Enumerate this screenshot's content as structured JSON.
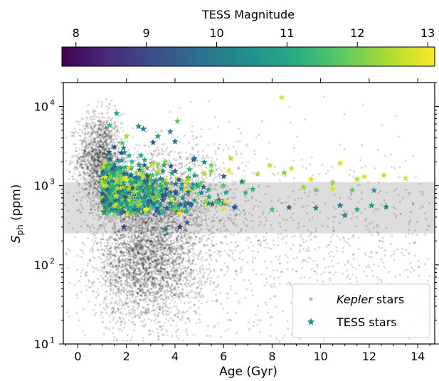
{
  "colorbar": {
    "label": "TESS Magnitude",
    "min": 7.8,
    "max": 13.1,
    "ticks": [
      8,
      9,
      10,
      11,
      12,
      13
    ],
    "tick_labels": [
      "8",
      "9",
      "10",
      "11",
      "12",
      "13"
    ],
    "colormap": "viridis"
  },
  "chart_data": {
    "type": "scatter",
    "xlabel": "Age (Gyr)",
    "ylabel_main": "S",
    "ylabel_sub": "ph",
    "ylabel_rest": " (ppm)",
    "xlim": [
      -0.6,
      14.7
    ],
    "ylim": [
      10,
      20000
    ],
    "yscale": "log",
    "x_ticks": [
      0,
      2,
      4,
      6,
      8,
      10,
      12,
      14
    ],
    "x_tick_labels": [
      "0",
      "2",
      "4",
      "6",
      "8",
      "10",
      "12",
      "14"
    ],
    "y_ticks": [
      {
        "value": 10,
        "base": "10",
        "exp": "1"
      },
      {
        "value": 100,
        "base": "10",
        "exp": "2"
      },
      {
        "value": 1000,
        "base": "10",
        "exp": "3"
      },
      {
        "value": 10000,
        "base": "10",
        "exp": "4"
      }
    ],
    "shaded_band": {
      "y_low": 250,
      "y_high": 1100,
      "color": "#dddddd"
    },
    "legend": {
      "placement": "lower-right",
      "entries": [
        {
          "label": "Kepler",
          "label_suffix": " stars",
          "italic_part": true,
          "marker": "dot",
          "color": "#b5b5b5"
        },
        {
          "label": "TESS stars",
          "label_suffix": "",
          "italic_part": false,
          "marker": "star",
          "color": "#21918c"
        }
      ]
    },
    "series": [
      {
        "name": "Kepler stars",
        "marker": "dot",
        "color": "#000000",
        "opacity": 0.15,
        "distribution": "dense cloud: young stars (0.3-1.5 Gyr) at 1000-8000 ppm; broad cluster 1.5-5 Gyr at 30-500 ppm; sparse spread to 14.5 Gyr at 20-3000 ppm"
      },
      {
        "name": "TESS stars",
        "marker": "star",
        "color_by": "TESS Magnitude",
        "points": [
          [
            8.4,
            13000,
            12.8
          ],
          [
            1.6,
            8200,
            10.9
          ],
          [
            4.1,
            6500,
            11.8
          ],
          [
            2.7,
            5200,
            9.9
          ],
          [
            10.8,
            1900,
            12.8
          ],
          [
            11.8,
            1300,
            12.8
          ],
          [
            12.6,
            1350,
            12.5
          ],
          [
            13.5,
            1250,
            12.8
          ],
          [
            11.5,
            1200,
            12.5
          ],
          [
            10.5,
            1100,
            12.3
          ],
          [
            9.3,
            950,
            12.2
          ],
          [
            9.8,
            880,
            11.9
          ],
          [
            10.5,
            900,
            12.8
          ],
          [
            11.3,
            880,
            11.8
          ],
          [
            12.2,
            870,
            10.7
          ],
          [
            9.6,
            1200,
            12.8
          ],
          [
            8.8,
            1650,
            12.7
          ],
          [
            7.9,
            1800,
            12.6
          ],
          [
            7.4,
            1400,
            12.4
          ],
          [
            8.5,
            1450,
            12.0
          ],
          [
            12.7,
            540,
            10.0
          ],
          [
            12.1,
            560,
            10.6
          ],
          [
            11.5,
            500,
            11.0
          ],
          [
            11.0,
            420,
            10.2
          ],
          [
            9.8,
            520,
            10.1
          ],
          [
            8.7,
            530,
            9.5
          ],
          [
            10.8,
            560,
            10.0
          ],
          [
            8.0,
            500,
            11.5
          ],
          [
            6.5,
            540,
            10.8
          ],
          [
            6.0,
            600,
            10.5
          ],
          [
            5.8,
            650,
            10.2
          ],
          [
            4.2,
            300,
            8.4
          ],
          [
            4.5,
            340,
            9.4
          ],
          [
            1.9,
            300,
            8.8
          ],
          [
            3.6,
            280,
            9.8
          ],
          [
            5.2,
            1400,
            12.6
          ],
          [
            6.3,
            2200,
            12.6
          ],
          [
            5.5,
            1800,
            11.9
          ],
          [
            4.8,
            2200,
            9.8
          ],
          [
            4.0,
            3600,
            9.9
          ],
          [
            3.8,
            4800,
            10.3
          ],
          [
            3.3,
            4200,
            10.9
          ],
          [
            2.5,
            5600,
            10.5
          ],
          [
            3.1,
            3500,
            9.0
          ],
          [
            1.3,
            5800,
            11.4
          ],
          [
            2.0,
            4200,
            12.4
          ],
          [
            1.8,
            2600,
            8.9
          ],
          [
            2.2,
            1700,
            12.0
          ],
          [
            2.8,
            1200,
            12.3
          ],
          [
            3.4,
            1000,
            11.3
          ],
          [
            4.4,
            900,
            12.6
          ],
          [
            5.0,
            800,
            12.1
          ],
          [
            6.0,
            1000,
            11.6
          ],
          [
            6.8,
            1100,
            12.4
          ],
          [
            7.2,
            900,
            11.2
          ],
          [
            1.5,
            800,
            11.8
          ],
          [
            2.4,
            700,
            12.1
          ],
          [
            3.1,
            600,
            11.6
          ],
          [
            3.9,
            550,
            10.3
          ],
          [
            4.8,
            650,
            11.0
          ],
          [
            1.6,
            1300,
            12.7
          ],
          [
            2.6,
            2400,
            11.0
          ],
          [
            3.6,
            2000,
            12.2
          ],
          [
            4.6,
            1600,
            11.4
          ]
        ]
      }
    ]
  }
}
